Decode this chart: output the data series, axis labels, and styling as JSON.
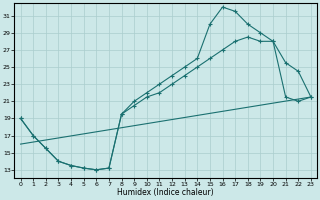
{
  "xlabel": "Humidex (Indice chaleur)",
  "bg_color": "#cce8e8",
  "line_color": "#1a7070",
  "grid_color": "#aacece",
  "xlim": [
    -0.5,
    23.5
  ],
  "ylim": [
    12,
    32.5
  ],
  "xticks": [
    0,
    1,
    2,
    3,
    4,
    5,
    6,
    7,
    8,
    9,
    10,
    11,
    12,
    13,
    14,
    15,
    16,
    17,
    18,
    19,
    20,
    21,
    22,
    23
  ],
  "yticks": [
    13,
    15,
    17,
    19,
    21,
    23,
    25,
    27,
    29,
    31
  ],
  "curve1_x": [
    0,
    1,
    2,
    3,
    4,
    5,
    6,
    7,
    8,
    9,
    10,
    11,
    12,
    13,
    14,
    15,
    16,
    17,
    18,
    19,
    20,
    21,
    22,
    23
  ],
  "curve1_y": [
    19,
    17,
    15.5,
    14,
    13.5,
    13.2,
    13.0,
    13.2,
    19.5,
    21.0,
    22.0,
    23.0,
    24.0,
    25.0,
    26.0,
    30.0,
    32.0,
    31.5,
    30.0,
    29.0,
    28.0,
    25.5,
    24.5,
    21.5
  ],
  "curve2_x": [
    0,
    1,
    2,
    3,
    4,
    5,
    6,
    7,
    8,
    9,
    10,
    11,
    12,
    13,
    14,
    15,
    16,
    17,
    18,
    19,
    20,
    21,
    22,
    23
  ],
  "curve2_y": [
    19,
    17,
    15.5,
    14,
    13.5,
    13.2,
    13.0,
    13.2,
    19.5,
    20.5,
    21.5,
    22.0,
    23.0,
    24.0,
    25.0,
    26.0,
    27.0,
    28.0,
    28.5,
    28.0,
    28.0,
    21.5,
    21.0,
    21.5
  ],
  "line3_x": [
    0,
    23
  ],
  "line3_y": [
    16.0,
    21.5
  ]
}
